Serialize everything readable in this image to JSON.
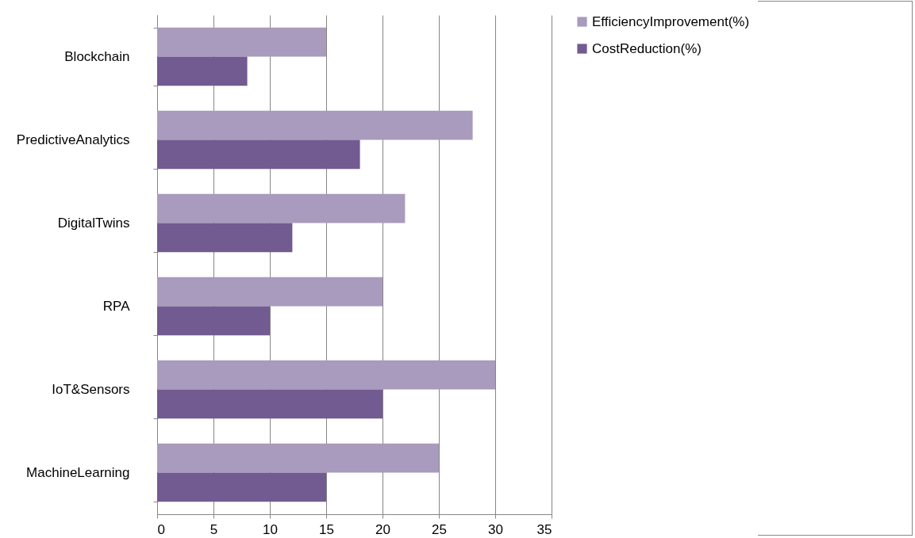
{
  "chart_data": {
    "type": "bar",
    "orientation": "horizontal",
    "categories": [
      "Blockchain",
      "PredictiveAnalytics",
      "DigitalTwins",
      "RPA",
      "IoT&Sensors",
      "MachineLearning"
    ],
    "series": [
      {
        "name": "EfficiencyImprovement(%)",
        "color": "#a99bbd",
        "values": [
          15,
          28,
          22,
          20,
          30,
          25
        ]
      },
      {
        "name": "CostReduction(%)",
        "color": "#725b91",
        "values": [
          8,
          18,
          12,
          10,
          20,
          15
        ]
      }
    ],
    "xlim": [
      0,
      35
    ],
    "xticks": [
      0,
      5,
      10,
      15,
      20,
      25,
      30,
      35
    ],
    "grid": "x",
    "legend": "right"
  }
}
